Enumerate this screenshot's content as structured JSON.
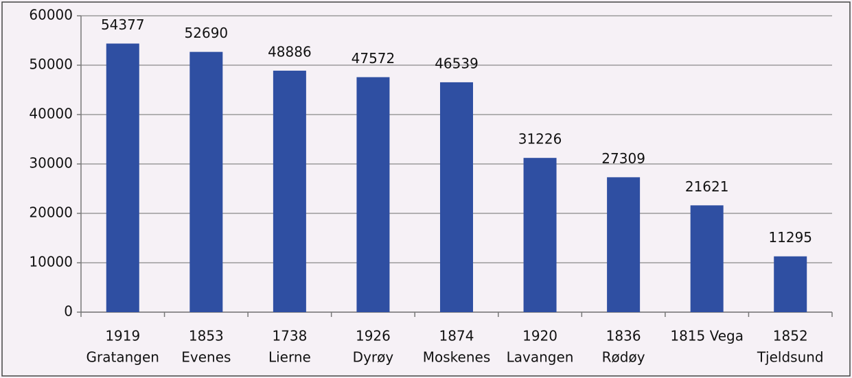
{
  "chart_data": {
    "type": "bar",
    "categories": [
      [
        "1919",
        "Gratangen"
      ],
      [
        "1853",
        "Evenes"
      ],
      [
        "1738",
        "Lierne"
      ],
      [
        "1926",
        "Dyrøy"
      ],
      [
        "1874",
        "Moskenes"
      ],
      [
        "1920",
        "Lavangen"
      ],
      [
        "1836",
        "Rødøy"
      ],
      [
        "1815 Vega"
      ],
      [
        "1852",
        "Tjeldsund"
      ]
    ],
    "values": [
      54377,
      52690,
      48886,
      47572,
      46539,
      31226,
      27309,
      21621,
      11295
    ],
    "color": "#2f4fa2",
    "ylim": [
      0,
      60000
    ],
    "yticks": [
      0,
      10000,
      20000,
      30000,
      40000,
      50000,
      60000
    ],
    "grid": true
  }
}
